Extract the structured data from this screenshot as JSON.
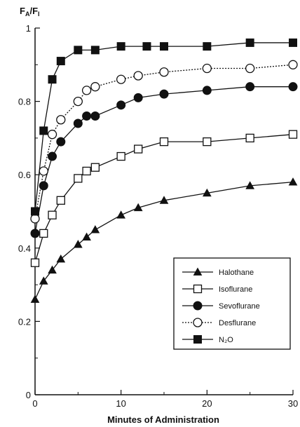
{
  "chart_data": {
    "type": "line",
    "ylabel_main": "F",
    "ylabel_sub_a": "A",
    "ylabel_sep": "/F",
    "ylabel_sub_i": "I",
    "xlabel": "Minutes of Administration",
    "xlim": [
      0,
      30
    ],
    "ylim": [
      0,
      1
    ],
    "xticks": [
      0,
      10,
      20,
      30
    ],
    "yticks": [
      0,
      0.2,
      0.4,
      0.6,
      0.8,
      1
    ],
    "ytick_labels": [
      "0",
      "0.2",
      "0.4",
      "0.6",
      "0.8",
      "1"
    ],
    "grid": false,
    "legend_position": "bottom-right",
    "series": [
      {
        "name": "Halothane",
        "marker": "triangle",
        "line": "solid",
        "x": [
          0,
          1,
          2,
          3,
          5,
          6,
          7,
          10,
          12,
          15,
          20,
          25,
          30
        ],
        "y": [
          0.26,
          0.31,
          0.34,
          0.37,
          0.41,
          0.43,
          0.45,
          0.49,
          0.51,
          0.53,
          0.55,
          0.57,
          0.58
        ]
      },
      {
        "name": "Isoflurane",
        "marker": "open-square",
        "line": "solid",
        "x": [
          0,
          1,
          2,
          3,
          5,
          6,
          7,
          10,
          12,
          15,
          20,
          25,
          30
        ],
        "y": [
          0.36,
          0.44,
          0.49,
          0.53,
          0.59,
          0.61,
          0.62,
          0.65,
          0.67,
          0.69,
          0.69,
          0.7,
          0.71
        ]
      },
      {
        "name": "Sevoflurane",
        "marker": "filled-circle",
        "line": "solid",
        "x": [
          0,
          1,
          2,
          3,
          5,
          6,
          7,
          10,
          12,
          15,
          20,
          25,
          30
        ],
        "y": [
          0.44,
          0.57,
          0.65,
          0.69,
          0.74,
          0.76,
          0.76,
          0.79,
          0.81,
          0.82,
          0.83,
          0.84,
          0.84
        ]
      },
      {
        "name": "Desflurane",
        "marker": "open-circle",
        "line": "dotted",
        "x": [
          0,
          1,
          2,
          3,
          5,
          6,
          7,
          10,
          12,
          15,
          20,
          25,
          30
        ],
        "y": [
          0.48,
          0.61,
          0.71,
          0.75,
          0.8,
          0.83,
          0.84,
          0.86,
          0.87,
          0.88,
          0.89,
          0.89,
          0.9
        ]
      },
      {
        "name": "N₂O",
        "marker": "filled-square",
        "line": "solid",
        "x": [
          0,
          1,
          2,
          3,
          5,
          7,
          10,
          13,
          15,
          20,
          25,
          30
        ],
        "y": [
          0.5,
          0.72,
          0.86,
          0.91,
          0.94,
          0.94,
          0.95,
          0.95,
          0.95,
          0.95,
          0.96,
          0.96
        ]
      }
    ]
  }
}
